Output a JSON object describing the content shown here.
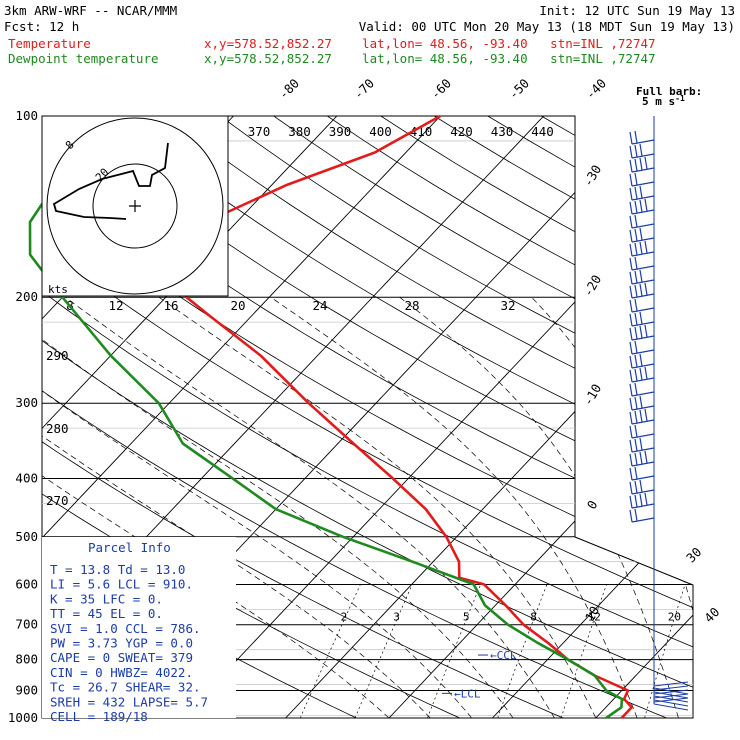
{
  "header": {
    "line1_left": "3km ARW-WRF -- NCAR/MMM",
    "line1_right": "Init: 12 UTC Sun 19 May 13",
    "line2_left": "Fcst:    12 h",
    "line2_right": "Valid: 00 UTC Mon 20 May 13 (18 MDT Sun 19 May 13)",
    "series_temp_label": "Temperature",
    "series_dew_label": "Dewpoint temperature",
    "location": "x,y=578.52,852.27    lat,lon= 48.56, -93.40   stn=INL ,72747"
  },
  "colors": {
    "temperature": "#e31b1b",
    "dewpoint": "#1f8a1f",
    "parcel": "#1c3ca8",
    "wind": "#1c3ca8",
    "axes": "#000000"
  },
  "barb_legend": {
    "title": "Full barb:",
    "value": "5 m s",
    "superscript": "-1"
  },
  "chart_data": {
    "type": "line",
    "subtype": "skew-T log-P diagram",
    "y_axis": {
      "quantity": "pressure",
      "unit": "hPa",
      "scale": "log",
      "ticks": [
        100,
        200,
        300,
        400,
        500,
        600,
        700,
        800,
        900,
        1000
      ]
    },
    "skewed_isotherm_labels": [
      -80,
      -70,
      -60,
      -50,
      -40,
      -30,
      -20,
      -10,
      0,
      10,
      20,
      30,
      40
    ],
    "theta_labels": [
      370,
      380,
      390,
      400,
      410,
      420,
      430,
      440
    ],
    "theta_side_labels": [
      290,
      280,
      270
    ],
    "mixing_ratio_labels": [
      2,
      3,
      5,
      8,
      12,
      20
    ],
    "hodograph_labels": {
      "ring_labels": [
        "8",
        "20"
      ],
      "unit": "kts",
      "speed_ticks": [
        "8",
        "12",
        "16",
        "20",
        "24",
        "28",
        "32"
      ]
    },
    "series": [
      {
        "name": "Temperature",
        "points": [
          [
            1000,
            22.5
          ],
          [
            960,
            22.5
          ],
          [
            930,
            21.0
          ],
          [
            900,
            20.6
          ],
          [
            850,
            16.0
          ],
          [
            800,
            12.0
          ],
          [
            750,
            8.5
          ],
          [
            700,
            4.5
          ],
          [
            650,
            1.0
          ],
          [
            600,
            -3.0
          ],
          [
            585,
            -6.0
          ],
          [
            550,
            -7.5
          ],
          [
            500,
            -11.0
          ],
          [
            450,
            -15.5
          ],
          [
            400,
            -21.5
          ],
          [
            350,
            -28.5
          ],
          [
            300,
            -36.5
          ],
          [
            250,
            -45.5
          ],
          [
            215,
            -54.0
          ],
          [
            200,
            -58.0
          ],
          [
            170,
            -62.0
          ],
          [
            150,
            -63.0
          ],
          [
            130,
            -58.5
          ],
          [
            115,
            -53.0
          ],
          [
            100,
            -50.0
          ]
        ]
      },
      {
        "name": "Dewpoint temperature",
        "points": [
          [
            1000,
            21.0
          ],
          [
            960,
            21.5
          ],
          [
            930,
            20.8
          ],
          [
            900,
            18.5
          ],
          [
            850,
            16.0
          ],
          [
            800,
            12.0
          ],
          [
            750,
            7.5
          ],
          [
            700,
            3.0
          ],
          [
            650,
            -1.0
          ],
          [
            600,
            -4.0
          ],
          [
            550,
            -12.0
          ],
          [
            500,
            -21.0
          ],
          [
            450,
            -30.0
          ],
          [
            400,
            -37.0
          ],
          [
            350,
            -45.0
          ],
          [
            300,
            -51.0
          ],
          [
            250,
            -60.0
          ],
          [
            200,
            -70.0
          ],
          [
            170,
            -77.0
          ],
          [
            150,
            -80.0
          ],
          [
            130,
            -81.0
          ],
          [
            115,
            -81.0
          ],
          [
            100,
            -84.0
          ]
        ]
      }
    ],
    "annotations": [
      "LCL",
      "CCL"
    ],
    "parcel_info": {
      "title": "Parcel Info",
      "lines": [
        "T  =    13.8  Td =  13.0",
        "LI =     5.6  LCL =  910.",
        "K  =      35  LFC =    0.",
        "TT =      45  EL  =    0.",
        "SVI =    1.0  CCL =  786.",
        "PW =    3.73  YGP =   0.0",
        "CAPE =     0  SWEAT=  379",
        "CIN  =     0  HWBZ= 4022.",
        "Tc =    26.7  SHEAR=  32.",
        "SREH =   432  LAPSE=  5.7",
        "CELL = 189/18"
      ]
    }
  }
}
